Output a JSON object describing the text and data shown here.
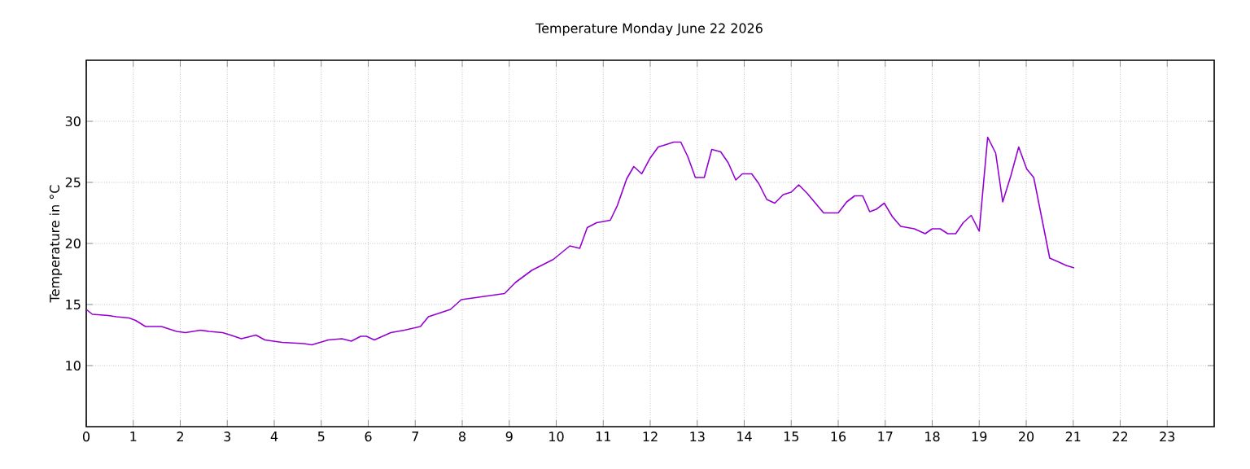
{
  "chart_data": {
    "type": "line",
    "title": "Temperature Monday June 22 2026",
    "ylabel": "Temperature in °C",
    "x": [
      0,
      0.13,
      0.47,
      0.64,
      0.91,
      1.05,
      1.26,
      1.6,
      1.92,
      2.11,
      2.43,
      2.61,
      2.9,
      3.07,
      3.3,
      3.61,
      3.8,
      4.17,
      4.63,
      4.8,
      5.15,
      5.44,
      5.64,
      5.84,
      5.96,
      6.13,
      6.48,
      6.77,
      7.11,
      7.28,
      7.75,
      7.98,
      8.9,
      9.13,
      9.48,
      9.94,
      10.29,
      10.5,
      10.66,
      10.86,
      11.15,
      11.3,
      11.5,
      11.65,
      11.82,
      12.0,
      12.17,
      12.34,
      12.5,
      12.65,
      12.8,
      12.96,
      13.15,
      13.31,
      13.5,
      13.66,
      13.82,
      13.96,
      14.16,
      14.31,
      14.48,
      14.65,
      14.83,
      15.0,
      15.16,
      15.34,
      15.69,
      16.0,
      16.18,
      16.35,
      16.52,
      16.67,
      16.81,
      16.98,
      17.15,
      17.33,
      17.62,
      17.85,
      18.0,
      18.17,
      18.33,
      18.5,
      18.66,
      18.83,
      19.0,
      19.18,
      19.35,
      19.5,
      19.67,
      19.84,
      20.01,
      20.16,
      20.33,
      20.5,
      20.68,
      20.85,
      21.02
    ],
    "series": [
      {
        "color": "#9400d3",
        "values": [
          14.6,
          14.2,
          14.1,
          14.0,
          13.9,
          13.7,
          13.2,
          13.2,
          12.8,
          12.7,
          12.9,
          12.8,
          12.7,
          12.5,
          12.2,
          12.5,
          12.1,
          11.9,
          11.8,
          11.7,
          12.1,
          12.2,
          12.0,
          12.4,
          12.4,
          12.1,
          12.7,
          12.9,
          13.2,
          14.0,
          14.6,
          15.4,
          15.9,
          16.8,
          17.8,
          18.7,
          19.8,
          19.6,
          21.3,
          21.7,
          21.9,
          23.1,
          25.3,
          26.3,
          25.7,
          27.0,
          27.9,
          28.1,
          28.3,
          28.3,
          27.1,
          25.4,
          25.4,
          27.7,
          27.5,
          26.6,
          25.2,
          25.7,
          25.7,
          24.9,
          23.6,
          23.3,
          24.0,
          24.2,
          24.8,
          24.1,
          22.5,
          22.5,
          23.4,
          23.9,
          23.9,
          22.6,
          22.8,
          23.3,
          22.2,
          21.4,
          21.2,
          20.8,
          21.2,
          21.2,
          20.8,
          20.8,
          21.7,
          22.3,
          21.0,
          28.7,
          27.4,
          23.4,
          25.5,
          27.9,
          26.1,
          25.4,
          22.1,
          18.8,
          18.5,
          18.2,
          18.0
        ]
      }
    ],
    "xlim": [
      0,
      24
    ],
    "ylim": [
      5,
      35
    ],
    "xticks": [
      0,
      1,
      2,
      3,
      4,
      5,
      6,
      7,
      8,
      9,
      10,
      11,
      12,
      13,
      14,
      15,
      16,
      17,
      18,
      19,
      20,
      21,
      22,
      23
    ],
    "yticks": [
      10,
      15,
      20,
      25,
      30
    ],
    "grid": true,
    "marker": "none",
    "line_style": "solid"
  }
}
